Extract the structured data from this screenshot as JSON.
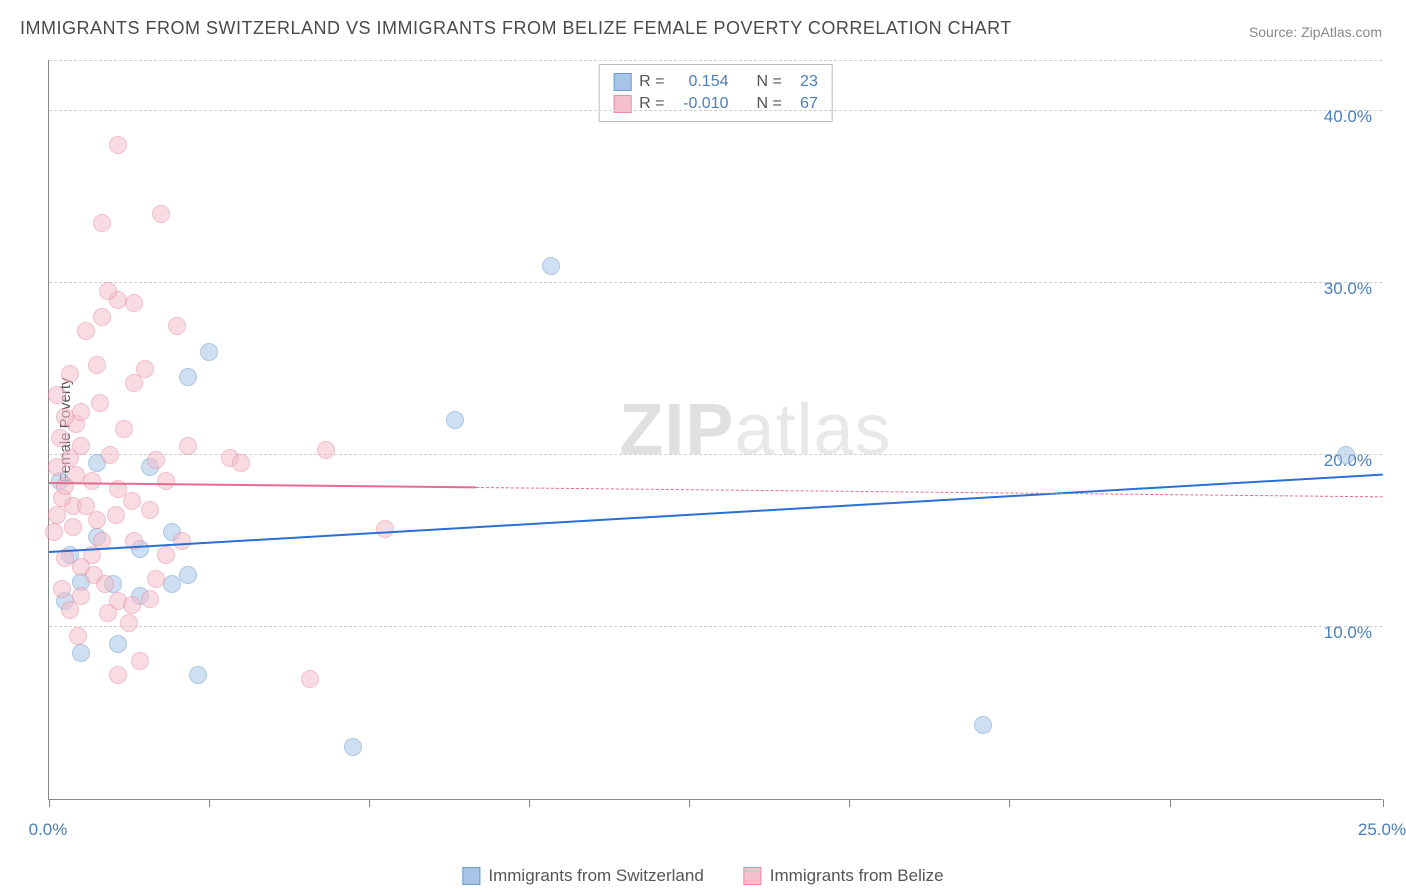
{
  "title": "IMMIGRANTS FROM SWITZERLAND VS IMMIGRANTS FROM BELIZE FEMALE POVERTY CORRELATION CHART",
  "source": "Source: ZipAtlas.com",
  "watermark_a": "ZIP",
  "watermark_b": "atlas",
  "ylabel": "Female Poverty",
  "chart": {
    "type": "scatter-with-trend",
    "background_color": "#ffffff",
    "grid_color": "#d0d0d0",
    "axis_color": "#888888",
    "xlim": [
      0,
      25
    ],
    "ylim": [
      0,
      43
    ],
    "x_ticks": [
      0,
      3,
      6,
      9,
      12,
      15,
      18,
      21,
      25
    ],
    "x_tick_labels": {
      "0": "0.0%",
      "25": "25.0%"
    },
    "y_gridlines": [
      10,
      20,
      30,
      40
    ],
    "y_tick_labels": {
      "10": "10.0%",
      "20": "20.0%",
      "30": "30.0%",
      "40": "40.0%"
    },
    "label_fontsize": 15,
    "tick_fontsize": 17,
    "tick_color": "#4a7ebb",
    "point_radius": 9,
    "point_opacity": 0.55,
    "series": [
      {
        "name": "Immigrants from Switzerland",
        "color_fill": "#a8c5e8",
        "color_stroke": "#6b9bd1",
        "trend_color": "#2a6fd6",
        "trend_width": 2,
        "R": "0.154",
        "N": "23",
        "trend": {
          "x1": 0,
          "y1": 14.3,
          "x2": 25,
          "y2": 18.8,
          "solid_until": 25
        },
        "points": [
          [
            0.3,
            11.5
          ],
          [
            0.2,
            18.5
          ],
          [
            2.6,
            24.5
          ],
          [
            3.0,
            26.0
          ],
          [
            1.7,
            14.5
          ],
          [
            1.2,
            12.5
          ],
          [
            2.6,
            13.0
          ],
          [
            0.4,
            14.2
          ],
          [
            2.3,
            15.5
          ],
          [
            0.9,
            19.5
          ],
          [
            1.3,
            9.0
          ],
          [
            2.8,
            7.2
          ],
          [
            5.7,
            3.0
          ],
          [
            7.6,
            22.0
          ],
          [
            9.4,
            31.0
          ],
          [
            0.6,
            12.6
          ],
          [
            2.3,
            12.5
          ],
          [
            1.9,
            19.3
          ],
          [
            17.5,
            4.3
          ],
          [
            24.3,
            20.0
          ],
          [
            0.9,
            15.2
          ],
          [
            1.7,
            11.8
          ],
          [
            0.6,
            8.5
          ]
        ]
      },
      {
        "name": "Immigrants from Belize",
        "color_fill": "#f4c0cc",
        "color_stroke": "#e88ba3",
        "trend_color": "#e86b8f",
        "trend_width": 2,
        "R": "-0.010",
        "N": "67",
        "trend": {
          "x1": 0,
          "y1": 18.3,
          "x2": 25,
          "y2": 17.5,
          "solid_until": 8
        },
        "points": [
          [
            0.3,
            14.0
          ],
          [
            0.1,
            15.5
          ],
          [
            0.15,
            16.5
          ],
          [
            0.45,
            17.0
          ],
          [
            0.25,
            17.5
          ],
          [
            0.5,
            18.8
          ],
          [
            0.15,
            19.3
          ],
          [
            0.4,
            19.8
          ],
          [
            0.6,
            20.5
          ],
          [
            0.2,
            21.0
          ],
          [
            0.5,
            21.8
          ],
          [
            0.3,
            22.2
          ],
          [
            0.6,
            22.5
          ],
          [
            0.4,
            24.7
          ],
          [
            0.9,
            25.2
          ],
          [
            0.7,
            27.2
          ],
          [
            1.0,
            28.0
          ],
          [
            1.3,
            29.0
          ],
          [
            1.1,
            29.5
          ],
          [
            1.6,
            28.8
          ],
          [
            1.8,
            25.0
          ],
          [
            1.6,
            24.2
          ],
          [
            1.3,
            18.0
          ],
          [
            1.55,
            17.3
          ],
          [
            1.9,
            16.8
          ],
          [
            2.0,
            19.7
          ],
          [
            2.2,
            18.5
          ],
          [
            2.4,
            27.5
          ],
          [
            2.6,
            20.5
          ],
          [
            3.4,
            19.8
          ],
          [
            3.6,
            19.5
          ],
          [
            5.2,
            20.3
          ],
          [
            1.0,
            33.5
          ],
          [
            2.1,
            34.0
          ],
          [
            1.3,
            38.0
          ],
          [
            1.0,
            15.0
          ],
          [
            0.8,
            14.2
          ],
          [
            0.6,
            13.5
          ],
          [
            0.85,
            13.0
          ],
          [
            1.05,
            12.5
          ],
          [
            0.6,
            11.8
          ],
          [
            1.3,
            11.5
          ],
          [
            1.55,
            11.3
          ],
          [
            1.1,
            10.8
          ],
          [
            1.5,
            10.2
          ],
          [
            0.55,
            9.5
          ],
          [
            1.9,
            11.6
          ],
          [
            2.2,
            14.2
          ],
          [
            2.5,
            15.0
          ],
          [
            0.25,
            12.2
          ],
          [
            1.7,
            8.0
          ],
          [
            1.3,
            7.2
          ],
          [
            4.9,
            7.0
          ],
          [
            6.3,
            15.7
          ],
          [
            0.9,
            16.2
          ],
          [
            0.3,
            18.2
          ],
          [
            0.15,
            23.5
          ],
          [
            0.45,
            15.8
          ],
          [
            0.7,
            17.0
          ],
          [
            0.8,
            18.5
          ],
          [
            1.15,
            20.0
          ],
          [
            1.4,
            21.5
          ],
          [
            0.95,
            23.0
          ],
          [
            1.6,
            15.0
          ],
          [
            0.4,
            11.0
          ],
          [
            2.0,
            12.8
          ],
          [
            1.25,
            16.5
          ]
        ]
      }
    ]
  },
  "legend_top": {
    "R_label": "R =",
    "N_label": "N ="
  },
  "bottom_legend": {
    "s1": "Immigrants from Switzerland",
    "s2": "Immigrants from Belize"
  }
}
